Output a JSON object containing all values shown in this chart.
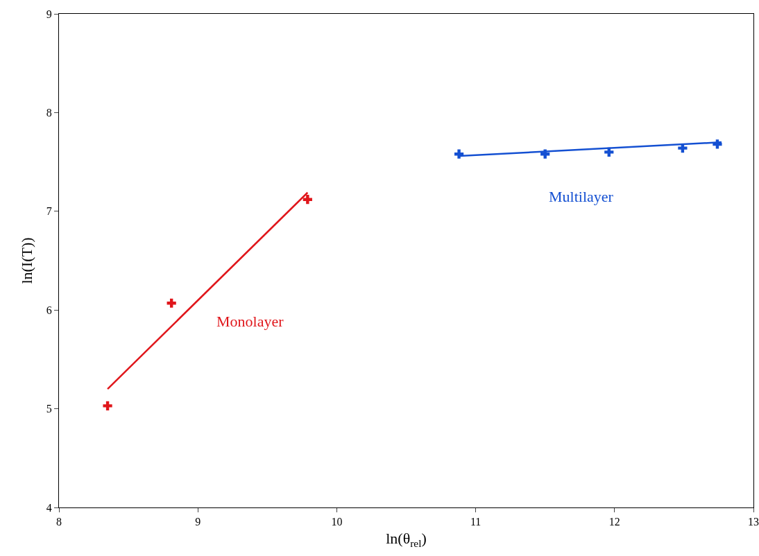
{
  "chart_data": {
    "type": "scatter",
    "xlabel": "ln(θ$_{rel}$)",
    "ylabel": "ln(I(T))",
    "xlim": [
      8,
      13
    ],
    "xticks": [
      8,
      9,
      10,
      11,
      12,
      13
    ],
    "ylim": [
      4,
      9
    ],
    "yticks": [
      4,
      5,
      6,
      7,
      8,
      9
    ],
    "grid": false,
    "marker": "cross",
    "line_style": "solid",
    "series": [
      {
        "name": "Monolayer",
        "color": "#e0161b",
        "x": [
          8.35,
          8.81,
          9.79
        ],
        "values": [
          5.03,
          6.07,
          7.12
        ]
      },
      {
        "type": "line",
        "marker": "none",
        "color": "#e0161b",
        "x": [
          8.35,
          9.79
        ],
        "values": [
          5.2,
          7.19
        ]
      },
      {
        "name": "Multilayer",
        "color": "#1450d2",
        "x": [
          10.88,
          11.5,
          11.96,
          12.49,
          12.74
        ],
        "values": [
          7.58,
          7.58,
          7.6,
          7.64,
          7.68
        ]
      },
      {
        "type": "line",
        "marker": "none",
        "color": "#1450d2",
        "x": [
          10.88,
          12.77
        ],
        "values": [
          7.56,
          7.7
        ]
      }
    ]
  }
}
